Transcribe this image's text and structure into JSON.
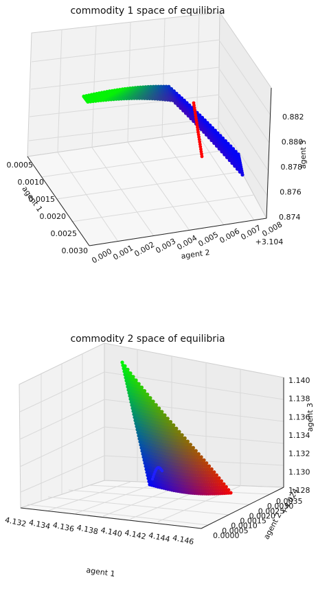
{
  "chart_data": [
    {
      "type": "scatter",
      "projection": "3d",
      "title": "commodity 1 space of equilibria",
      "xlabel": "agent 1",
      "ylabel": "agent 2",
      "zlabel": "agent 3",
      "x_offset_label": "+3.104",
      "x_ticks": [
        "0.0005",
        "0.0010",
        "0.0015",
        "0.0020",
        "0.0025",
        "0.0030"
      ],
      "y_ticks": [
        "0.000",
        "0.001",
        "0.002",
        "0.003",
        "0.004",
        "0.005",
        "0.006",
        "0.007",
        "0.008"
      ],
      "z_ticks": [
        "0.874",
        "0.876",
        "0.878",
        "0.880",
        "0.882"
      ],
      "xlim": [
        0.0005,
        0.003
      ],
      "ylim": [
        0.0,
        0.008
      ],
      "zlim": [
        0.874,
        0.883
      ],
      "grid": true,
      "surface": {
        "description_colors": [
          "#00ff00",
          "#0000ff",
          "#ff0000"
        ],
        "points": [
          {
            "x": 0.0008,
            "y": 0.0005,
            "z": 0.8815
          },
          {
            "x": 0.0012,
            "y": 0.002,
            "z": 0.8822
          },
          {
            "x": 0.0016,
            "y": 0.0035,
            "z": 0.8818
          },
          {
            "x": 0.002,
            "y": 0.005,
            "z": 0.8805
          },
          {
            "x": 0.0024,
            "y": 0.0062,
            "z": 0.8785
          },
          {
            "x": 0.0028,
            "y": 0.0072,
            "z": 0.8765
          }
        ]
      }
    },
    {
      "type": "scatter",
      "projection": "3d",
      "title": "commodity 2 space of equilibria",
      "xlabel": "agent 1",
      "ylabel": "agent 2",
      "zlabel": "agent 3",
      "y_offset_label": "+4.024",
      "x_ticks": [
        "4.132",
        "4.134",
        "4.136",
        "4.138",
        "4.140",
        "4.142",
        "4.144",
        "4.146"
      ],
      "y_ticks": [
        "0.0000",
        "0.0005",
        "0.0010",
        "0.0015",
        "0.0020",
        "0.0025",
        "0.0030",
        "0.0035"
      ],
      "z_ticks": [
        "1.128",
        "1.130",
        "1.132",
        "1.134",
        "1.136",
        "1.138",
        "1.140"
      ],
      "xlim": [
        4.132,
        4.146
      ],
      "ylim": [
        0.0,
        0.0035
      ],
      "zlim": [
        1.128,
        1.14
      ],
      "grid": true,
      "surface": {
        "description_colors": [
          "#00ff00",
          "#0000ff",
          "#ff0000"
        ],
        "points": [
          {
            "x": 4.136,
            "y": 0.0028,
            "z": 1.1395
          },
          {
            "x": 4.138,
            "y": 0.0022,
            "z": 1.133
          },
          {
            "x": 4.139,
            "y": 0.0018,
            "z": 1.129
          },
          {
            "x": 4.143,
            "y": 0.001,
            "z": 1.129
          }
        ]
      }
    }
  ]
}
